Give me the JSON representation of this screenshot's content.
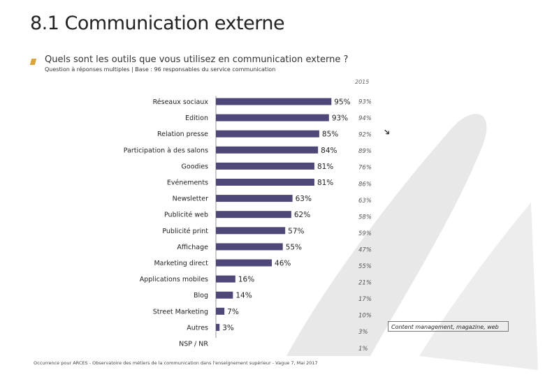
{
  "slide": {
    "title": "8.1 Communication externe",
    "question": "Quels sont les outils que vous utilisez en communication externe ?",
    "subnote": "Question à réponses multiples | Base : 96 responsables du service communication",
    "source": "Occurrence pour ARCES - Observatoire des métiers de la communication dans l'enseignement supérieur - Vague 7, Mai 2017",
    "note": "Content management, magazine, web",
    "trend_icon": "arrow-down-right-icon"
  },
  "chart_data": {
    "type": "bar",
    "orientation": "horizontal",
    "bar_color": "#4e4878",
    "categories": [
      "Réseaux sociaux",
      "Edition",
      "Relation presse",
      "Participation à des salons",
      "Goodies",
      "Evénements",
      "Newsletter",
      "Publicité web",
      "Publicité print",
      "Affichage",
      "Marketing direct",
      "Applications mobiles",
      "Blog",
      "Street Marketing",
      "Autres",
      "NSP / NR"
    ],
    "values": [
      95,
      93,
      85,
      84,
      81,
      81,
      63,
      62,
      57,
      55,
      46,
      16,
      14,
      7,
      3,
      null
    ],
    "value_labels": [
      "95%",
      "93%",
      "85%",
      "84%",
      "81%",
      "81%",
      "63%",
      "62%",
      "57%",
      "55%",
      "46%",
      "16%",
      "14%",
      "7%",
      "3%",
      ""
    ],
    "comparison_year": "2015",
    "comparison_labels": [
      "93%",
      "94%",
      "92%",
      "89%",
      "76%",
      "86%",
      "63%",
      "58%",
      "59%",
      "47%",
      "55%",
      "21%",
      "17%",
      "10%",
      "3%",
      "1%"
    ],
    "xlim": [
      0,
      100
    ]
  }
}
